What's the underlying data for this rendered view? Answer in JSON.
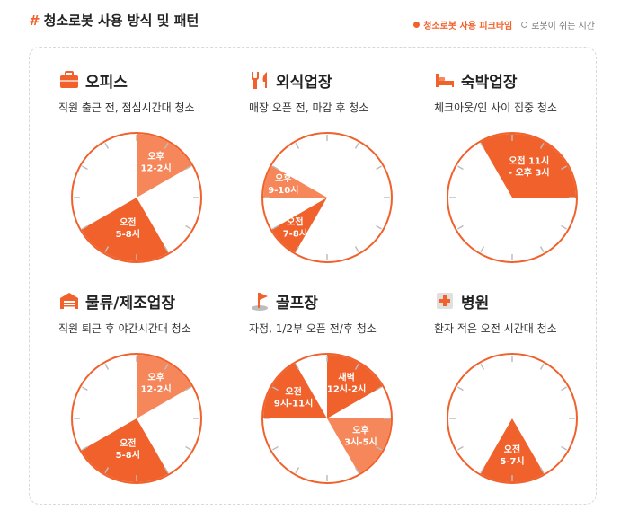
{
  "header": {
    "hash": "#",
    "title": "청소로봇 사용 방식 및 패턴"
  },
  "legend": {
    "peak_label": "청소로봇 사용 피크타임",
    "rest_label": "로봇이 쉬는 시간"
  },
  "colors": {
    "peak": "#f0612c",
    "peak_light": "#f5875a",
    "rim": "#f0612c",
    "ticks": "#bdbdbd",
    "text": "#2b2b2b"
  },
  "chart_data": [
    {
      "type": "pie",
      "name": "오피스",
      "icon": "briefcase-icon",
      "description": "직원 출근 전, 점심시간대 청소",
      "segments": [
        {
          "start_hour": 12,
          "end_hour": 14,
          "label": [
            "오후",
            "12-2시"
          ],
          "shade": "light"
        },
        {
          "start_hour": 5,
          "end_hour": 8,
          "label": [
            "오전",
            "5-8시"
          ],
          "shade": "dark"
        }
      ]
    },
    {
      "type": "pie",
      "name": "외식업장",
      "icon": "fork-knife-icon",
      "description": "매장 오픈 전, 마감 후 청소",
      "segments": [
        {
          "start_hour": 9,
          "end_hour": 10,
          "label": [
            "오후",
            "9-10시"
          ],
          "shade": "light"
        },
        {
          "start_hour": 7,
          "end_hour": 8,
          "label": [
            "오전",
            "7-8시"
          ],
          "shade": "dark"
        }
      ]
    },
    {
      "type": "pie",
      "name": "숙박업장",
      "icon": "bed-icon",
      "description": "체크아웃/인 사이 집중 청소",
      "segments": [
        {
          "start_hour": 11,
          "end_hour": 15,
          "label": [
            "오전 11시",
            "- 오후 3시"
          ],
          "shade": "dark"
        }
      ]
    },
    {
      "type": "pie",
      "name": "물류/제조업장",
      "icon": "warehouse-icon",
      "description": "직원 퇴근 후 야간시간대 청소",
      "segments": [
        {
          "start_hour": 12,
          "end_hour": 14,
          "label": [
            "오후",
            "12-2시"
          ],
          "shade": "light"
        },
        {
          "start_hour": 5,
          "end_hour": 8,
          "label": [
            "오전",
            "5-8시"
          ],
          "shade": "dark"
        }
      ]
    },
    {
      "type": "pie",
      "name": "골프장",
      "icon": "golf-flag-icon",
      "description": "자정, 1/2부 오픈 전/후 청소",
      "segments": [
        {
          "start_hour": 0,
          "end_hour": 2,
          "label": [
            "새벽",
            "12시-2시"
          ],
          "shade": "dark"
        },
        {
          "start_hour": 3,
          "end_hour": 5,
          "label": [
            "오후",
            "3시-5시"
          ],
          "shade": "light"
        },
        {
          "start_hour": 9,
          "end_hour": 11,
          "label": [
            "오전",
            "9시-11시"
          ],
          "shade": "dark"
        }
      ]
    },
    {
      "type": "pie",
      "name": "병원",
      "icon": "hospital-icon",
      "description": "환자 적은 오전 시간대 청소",
      "segments": [
        {
          "start_hour": 5,
          "end_hour": 7,
          "label": [
            "오전",
            "5-7시"
          ],
          "shade": "dark"
        }
      ]
    }
  ]
}
